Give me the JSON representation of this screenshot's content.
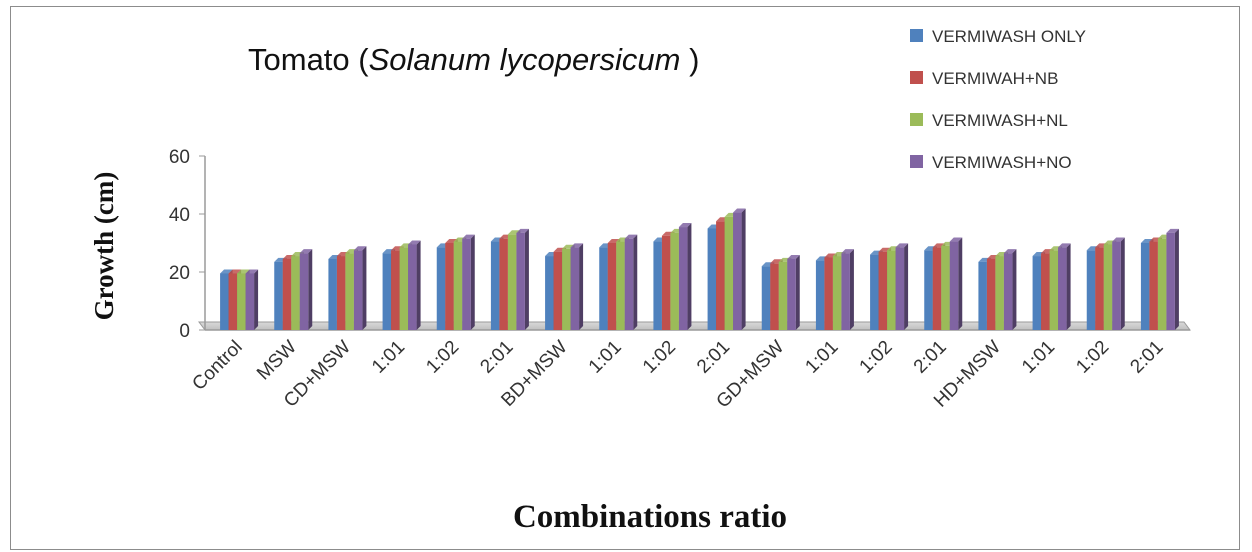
{
  "chart_data": {
    "type": "bar",
    "title_main": "Tomato (",
    "title_species": "Solanum lycopersicum",
    "title_end": " )",
    "xlabel": "Combinations ratio",
    "ylabel": "Growth (cm)",
    "ylim": [
      0,
      60
    ],
    "yticks": [
      0,
      20,
      40,
      60
    ],
    "grid": false,
    "legend_position": "top-right",
    "categories": [
      "Control",
      "MSW",
      "CD+MSW",
      "1:01",
      "1:02",
      "2:01",
      "BD+MSW",
      "1:01",
      "1:02",
      "2:01",
      "GD+MSW",
      "1:01",
      "1:02",
      "2:01",
      "HD+MSW",
      "1:01",
      "1:02",
      "2:01"
    ],
    "series": [
      {
        "name": "VERMIWASH ONLY",
        "color": "#4F81BD",
        "values": [
          19.5,
          23.5,
          24.5,
          26.5,
          28.5,
          30.5,
          25.5,
          28.5,
          30.5,
          35,
          22,
          24,
          26,
          27.5,
          23.5,
          25.5,
          27.5,
          30
        ]
      },
      {
        "name": "VERMIWAH+NB",
        "color": "#C0504D",
        "values": [
          19.5,
          24.5,
          25.5,
          27.5,
          30,
          31.5,
          27,
          30,
          32.5,
          37.5,
          23,
          25,
          27,
          28.5,
          24.5,
          26.5,
          28.5,
          30.5
        ]
      },
      {
        "name": "VERMIWASH+NL",
        "color": "#9BBB59",
        "values": [
          19.5,
          25.5,
          26.5,
          28.5,
          30.5,
          33,
          28,
          30.5,
          33.5,
          39,
          23.5,
          25.5,
          27.5,
          29,
          25.5,
          27.5,
          29.5,
          31.5
        ]
      },
      {
        "name": "VERMIWASH+NO",
        "color": "#8064A2",
        "values": [
          19.5,
          26.5,
          27.5,
          29.5,
          31.5,
          33.5,
          28.5,
          31.5,
          35.5,
          40.5,
          24.5,
          26.5,
          28.5,
          30.5,
          26.5,
          28.5,
          30.5,
          33.5
        ]
      }
    ]
  }
}
